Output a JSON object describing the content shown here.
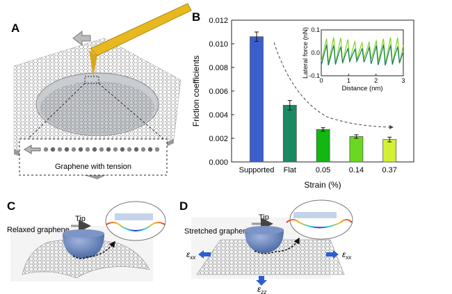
{
  "panels": {
    "a": {
      "label": "A",
      "caption": "Graphene with tension"
    },
    "b": {
      "label": "B"
    },
    "c": {
      "label": "C",
      "surface_label": "Relaxed graphene",
      "tip_label": "Tip"
    },
    "d": {
      "label": "D",
      "surface_label": "Stretched graphene",
      "tip_label": "Tip",
      "strain_xx": "ε",
      "strain_xx_sub": "xx",
      "strain_zz": "ε",
      "strain_zz_sub": "zz"
    }
  },
  "colors": {
    "tip": "#5b7fb8",
    "cantilever": "#e8b820",
    "arrow": "#2b5fd0",
    "sheet": "#8a8a8a"
  },
  "chart_data": [
    {
      "type": "bar",
      "categories": [
        "Supported",
        "Flat",
        "0.05",
        "0.14",
        "0.37"
      ],
      "values": [
        0.0106,
        0.0048,
        0.00275,
        0.00215,
        0.0019
      ],
      "errors": [
        0.0004,
        0.0004,
        0.00015,
        0.00015,
        0.0002
      ],
      "bar_colors": [
        "#3a5fcd",
        "#1a8a63",
        "#12b812",
        "#6ad820",
        "#d4f036"
      ],
      "xlabel": "Strain (%)",
      "ylabel": "Friction coefficients",
      "ylim": [
        0,
        0.012
      ],
      "yticks": [
        "0.000",
        "0.002",
        "0.004",
        "0.006",
        "0.008",
        "0.010",
        "0.012"
      ],
      "annotation": "dashed arrow indicating decreasing trend"
    },
    {
      "type": "line",
      "xlabel": "Distance (nm)",
      "ylabel": "Lateral force (nN)",
      "xlim": [
        0,
        3
      ],
      "ylim": [
        -0.1,
        0.1
      ],
      "xticks": [
        "0",
        "1",
        "2",
        "3"
      ],
      "yticks": [
        "-0.1",
        "0.0",
        "0.1"
      ],
      "series": [
        {
          "color": "#7ed321",
          "period_nm": 0.26,
          "amplitude_nN": 0.06
        },
        {
          "color": "#127a5a",
          "period_nm": 0.26,
          "amplitude_nN": 0.045
        }
      ]
    }
  ]
}
